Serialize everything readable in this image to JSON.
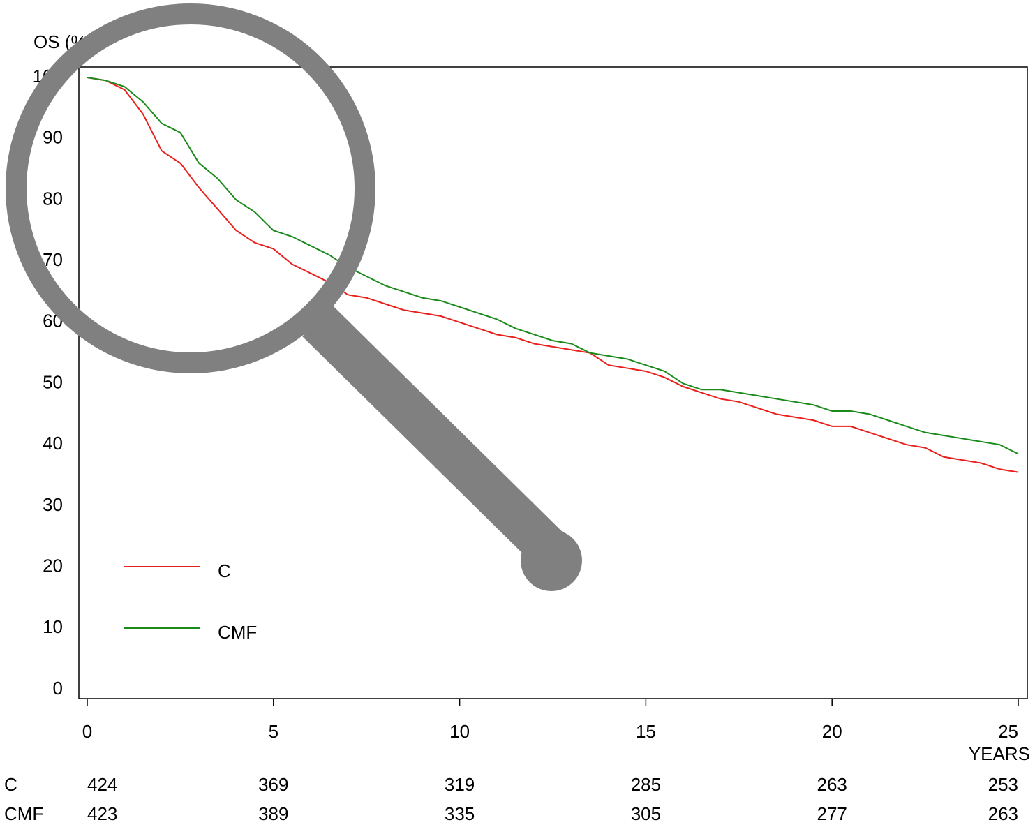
{
  "chart_data": {
    "type": "line",
    "y_label": "OS (%)",
    "x_label": "YEARS",
    "x": [
      0,
      0.5,
      1,
      1.5,
      2,
      2.5,
      3,
      3.5,
      4,
      4.5,
      5,
      5.5,
      6,
      6.5,
      7,
      7.5,
      8,
      8.5,
      9,
      9.5,
      10,
      10.5,
      11,
      11.5,
      12,
      12.5,
      13,
      13.5,
      14,
      14.5,
      15,
      15.5,
      16,
      16.5,
      17,
      17.5,
      18,
      18.5,
      19,
      19.5,
      20,
      20.5,
      21,
      21.5,
      22,
      22.5,
      23,
      23.5,
      24,
      24.5,
      25
    ],
    "series": [
      {
        "name": "C",
        "color": "#e8201c",
        "values": [
          100,
          99.5,
          98,
          94,
          88,
          86,
          82,
          78.5,
          75,
          73,
          72,
          69.5,
          68,
          66.5,
          64.5,
          64,
          63,
          62,
          61.5,
          61,
          60,
          59,
          58,
          57.5,
          56.5,
          56,
          55.5,
          55,
          53,
          52.5,
          52,
          51,
          49.5,
          48.5,
          47.5,
          47,
          46,
          45,
          44.5,
          44,
          43,
          43,
          42,
          41,
          40,
          39.5,
          38,
          37.5,
          37,
          36,
          35.5
        ]
      },
      {
        "name": "CMF",
        "color": "#1a8a1a",
        "values": [
          100,
          99.5,
          98.5,
          96,
          92.5,
          91,
          86,
          83.5,
          80,
          78,
          75,
          74,
          72.5,
          71,
          69,
          67.5,
          66,
          65,
          64,
          63.5,
          62.5,
          61.5,
          60.5,
          59,
          58,
          57,
          56.5,
          55,
          54.5,
          54,
          53,
          52,
          50,
          49,
          49,
          48.5,
          48,
          47.5,
          47,
          46.5,
          45.5,
          45.5,
          45,
          44,
          43,
          42,
          41.5,
          41,
          40.5,
          40,
          38.5
        ]
      }
    ],
    "xlim": [
      0,
      25
    ],
    "xticks": [
      0,
      5,
      10,
      15,
      20,
      25
    ],
    "ylim": [
      0,
      100
    ],
    "yticks": [
      0,
      10,
      20,
      30,
      40,
      50,
      60,
      70,
      80,
      90,
      100
    ],
    "grid": false,
    "at_risk": [
      {
        "name": "C",
        "values": [
          424,
          369,
          319,
          285,
          263,
          253
        ]
      },
      {
        "name": "CMF",
        "values": [
          423,
          389,
          335,
          305,
          277,
          263
        ]
      }
    ]
  }
}
